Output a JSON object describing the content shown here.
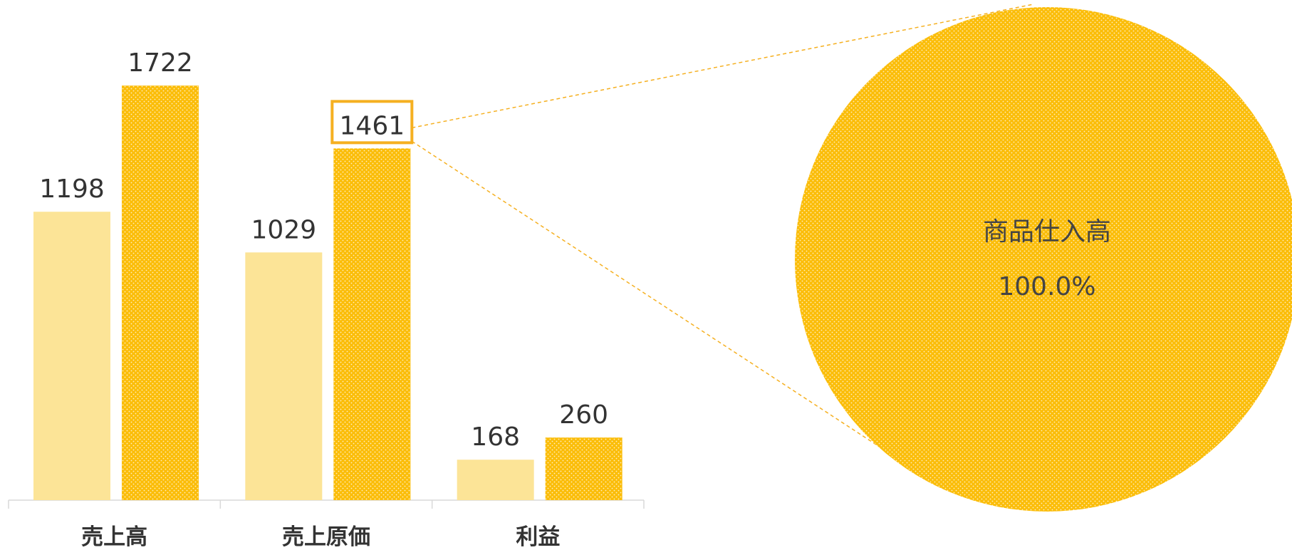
{
  "colors": {
    "bar_light": "#FCE497",
    "bar_dark": "#FBBD09",
    "pie": "#FBBD09",
    "connector": "#F5B021",
    "highlight_border": "#F5B021",
    "axis": "#D9D9D9",
    "text": "#333333"
  },
  "chart_data": [
    {
      "type": "bar",
      "categories": [
        "売上高",
        "売上原価",
        "利益"
      ],
      "series": [
        {
          "values": [
            1198,
            1029,
            168
          ],
          "color": "#FCE497",
          "pattern": "solid"
        },
        {
          "values": [
            1722,
            1461,
            260
          ],
          "color": "#FBBD09",
          "pattern": "dotted"
        }
      ],
      "data_labels": true,
      "highlighted_point": {
        "category": "売上原価",
        "series_index": 1,
        "value": 1461
      },
      "ylim": [
        0,
        1900
      ],
      "grid": false,
      "legend": "none"
    },
    {
      "type": "pie",
      "slices": [
        {
          "label": "商品仕入高",
          "value": 100.0,
          "value_label": "100.0%",
          "color": "#FBBD09"
        }
      ],
      "breakout_of": {
        "category": "売上原価",
        "series_index": 1
      },
      "grid": false,
      "legend": "none"
    }
  ]
}
